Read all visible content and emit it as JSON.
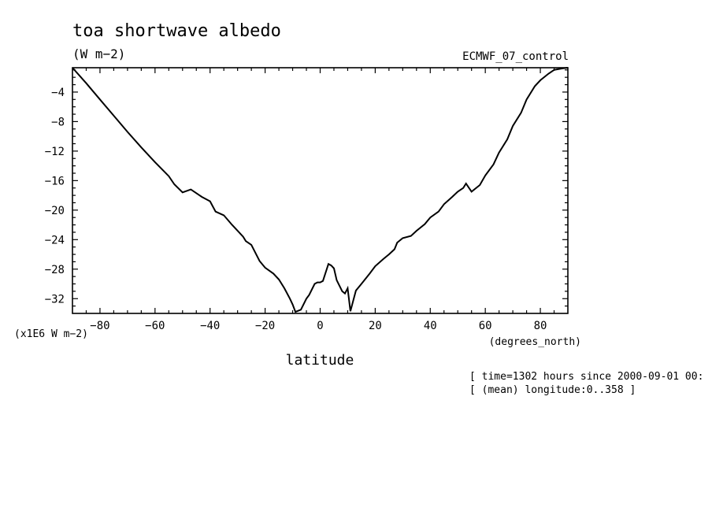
{
  "chart_data": {
    "type": "line",
    "title": "toa shortwave albedo",
    "units": "(W m−2)",
    "dataset": "ECMWF_07_control",
    "xlabel": "latitude",
    "x_units": "(degrees_north)",
    "y_scale_note": "(x1E6 W m−2)",
    "xlim": [
      -90,
      90
    ],
    "ylim": [
      -34,
      -0.7
    ],
    "x_ticks": [
      -80,
      -60,
      -40,
      -20,
      0,
      20,
      40,
      60,
      80
    ],
    "x_tick_labels": [
      "−80",
      "−60",
      "−40",
      "−20",
      "0",
      "20",
      "40",
      "60",
      "80"
    ],
    "y_ticks": [
      -4,
      -8,
      -12,
      -16,
      -20,
      -24,
      -28,
      -32
    ],
    "y_tick_labels": [
      "−4",
      "−8",
      "−12",
      "−16",
      "−20",
      "−24",
      "−28",
      "−32"
    ],
    "grid": false,
    "series": [
      {
        "x": [
          -90,
          -85,
          -80,
          -75,
          -70,
          -65,
          -60,
          -55,
          -53,
          -50,
          -47,
          -45,
          -43,
          -40,
          -38,
          -35,
          -32,
          -28,
          -27,
          -25,
          -22,
          -20,
          -17,
          -15,
          -13,
          -11,
          -10,
          -9,
          -7,
          -5,
          -4,
          -2,
          -1,
          0,
          1,
          3,
          4,
          5,
          6,
          8,
          9,
          10,
          11,
          13,
          15,
          18,
          20,
          23,
          25,
          27,
          28,
          30,
          33,
          35,
          38,
          40,
          43,
          45,
          48,
          50,
          52,
          53,
          55,
          58,
          60,
          63,
          65,
          68,
          70,
          73,
          75,
          78,
          80,
          83,
          85,
          88,
          90
        ],
        "y": [
          -0.7,
          -2.8,
          -5.0,
          -7.2,
          -9.4,
          -11.5,
          -13.5,
          -15.4,
          -16.5,
          -17.6,
          -17.2,
          -17.7,
          -18.2,
          -18.8,
          -20.2,
          -20.7,
          -22.0,
          -23.6,
          -24.2,
          -24.7,
          -26.9,
          -27.8,
          -28.6,
          -29.4,
          -30.6,
          -32.0,
          -32.8,
          -33.8,
          -33.5,
          -32.0,
          -31.5,
          -30.0,
          -29.8,
          -29.8,
          -29.6,
          -27.3,
          -27.5,
          -27.9,
          -29.5,
          -31.0,
          -31.3,
          -30.6,
          -33.7,
          -30.9,
          -30.0,
          -28.6,
          -27.6,
          -26.6,
          -26.0,
          -25.3,
          -24.4,
          -23.8,
          -23.5,
          -22.8,
          -21.9,
          -21.0,
          -20.2,
          -19.2,
          -18.2,
          -17.5,
          -17.0,
          -16.4,
          -17.5,
          -16.6,
          -15.3,
          -13.8,
          -12.2,
          -10.4,
          -8.6,
          -6.8,
          -5.0,
          -3.2,
          -2.4,
          -1.5,
          -1.0,
          -0.8,
          -0.7
        ]
      }
    ],
    "notes": [
      "[ time=1302 hours since 2000-09-01 00:",
      "[ (mean) longitude:0..358 ]"
    ]
  },
  "colors": {
    "line": "#000000",
    "axes": "#000000",
    "background": "#ffffff"
  }
}
